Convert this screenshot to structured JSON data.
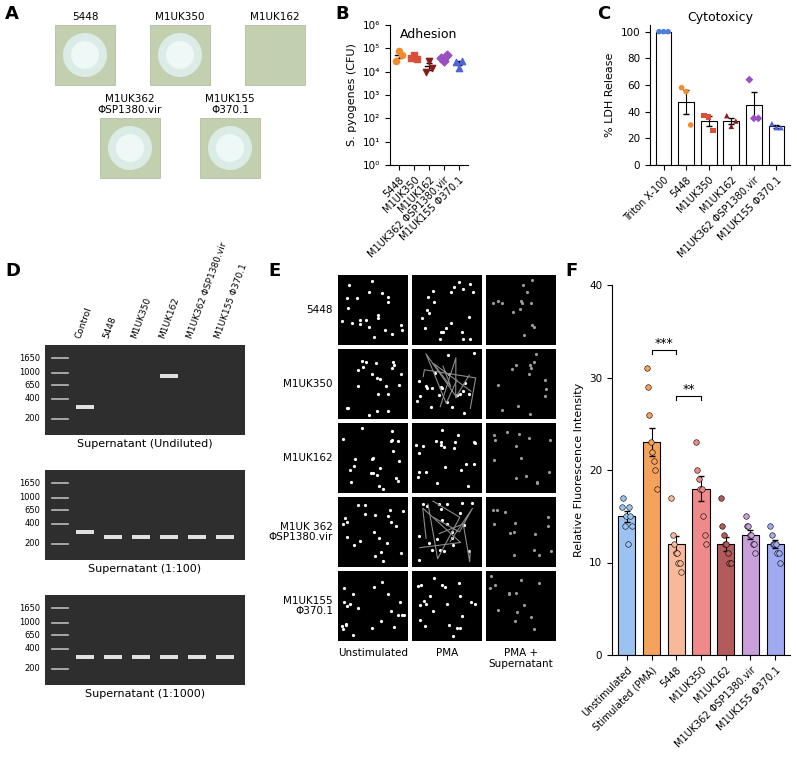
{
  "panel_A": {
    "panel_label": "A",
    "colonies": [
      {
        "name": "5448",
        "halo": true
      },
      {
        "name": "M1UK350",
        "halo": true
      },
      {
        "name": "M1UK162",
        "halo": false
      },
      {
        "name": "M1UK362\nΦSP1380.vir",
        "halo": true
      },
      {
        "name": "M1UK155\nΦ370.1",
        "halo": true
      }
    ]
  },
  "panel_D": {
    "panel_label": "D",
    "lanes": [
      "Control",
      "5448",
      "M1UK350",
      "M1UK162",
      "M1UK362 ΦSP1380.vir",
      "M1UK155 Φ370.1"
    ],
    "ladder": [
      1650,
      1000,
      650,
      400,
      200
    ],
    "gels": [
      {
        "caption": "Supernatant (Undiluted)",
        "bands": [
          300,
          null,
          null,
          900,
          null,
          null
        ]
      },
      {
        "caption": "Supernatant (1:100)",
        "bands": [
          300,
          250,
          250,
          250,
          250,
          250
        ]
      },
      {
        "caption": "Supernatant (1:1000)",
        "bands": [
          300,
          300,
          300,
          300,
          300,
          300
        ]
      }
    ]
  },
  "panel_E": {
    "panel_label": "E",
    "rows": [
      "5448",
      "M1UK350",
      "M1UK162",
      "M1UK 362\nΦSP1380.vir",
      "M1UK155\nΦ370.1"
    ],
    "columns": [
      "Unstimulated",
      "PMA",
      "PMA +\nSupernatant"
    ]
  },
  "chart_data": [
    {
      "panel_label": "B",
      "type": "scatter",
      "title": "Adhesion",
      "y_label": "S. pyogenes (CFU)",
      "log": "y",
      "ylim": [
        1,
        1000000
      ],
      "yticks": [
        {
          "value": 1,
          "label": "10⁰"
        },
        {
          "value": 10,
          "label": "10¹"
        },
        {
          "value": 100,
          "label": "10²"
        },
        {
          "value": 1000,
          "label": "10³"
        },
        {
          "value": 10000,
          "label": "10⁴"
        },
        {
          "value": 100000,
          "label": "10⁵"
        },
        {
          "value": 1000000,
          "label": "10⁶"
        }
      ],
      "series": [
        {
          "name": "5448",
          "color": "#f08c2e",
          "marker": "circle",
          "values": [
            30000,
            80000,
            50000
          ],
          "mean": 53000,
          "error": 15000
        },
        {
          "name": "M1UK350",
          "color": "#d9503a",
          "marker": "square",
          "values": [
            40000,
            50000,
            35000
          ],
          "mean": 42000,
          "error": 4500
        },
        {
          "name": "M1UK162",
          "color": "#8b1a1a",
          "marker": "triangle_down",
          "values": [
            10000,
            30000,
            15000
          ],
          "mean": 18000,
          "error": 6000
        },
        {
          "name": "M1UK362 ΦSP1380.vir",
          "color": "#9b4fc0",
          "marker": "diamond",
          "values": [
            40000,
            30000,
            50000
          ],
          "mean": 40000,
          "error": 5800
        },
        {
          "name": "M1UK155 Φ370.1",
          "color": "#4f63d9",
          "marker": "triangle_up",
          "values": [
            25000,
            15000,
            30000
          ],
          "mean": 23000,
          "error": 4400
        }
      ]
    },
    {
      "panel_label": "C",
      "type": "bar",
      "title": "Cytotoxicy",
      "y_label": "% LDH Release",
      "ylim": [
        0,
        105
      ],
      "yticks": [
        0,
        20,
        40,
        60,
        80,
        100
      ],
      "series": [
        {
          "name": "Triton X-100",
          "color": "#4f7fd9",
          "marker": "circle",
          "values": [
            100,
            100,
            100
          ],
          "mean": 100,
          "error": 0
        },
        {
          "name": "5448",
          "color": "#f08c2e",
          "marker": "circle",
          "values": [
            58,
            55,
            30
          ],
          "mean": 47,
          "error": 9
        },
        {
          "name": "M1UK350",
          "color": "#d9503a",
          "marker": "square",
          "values": [
            37,
            36,
            26
          ],
          "mean": 33,
          "error": 3.5
        },
        {
          "name": "M1UK162",
          "color": "#8b1a1a",
          "marker": "triangle_up",
          "values": [
            37,
            29,
            33
          ],
          "mean": 33,
          "error": 2.3
        },
        {
          "name": "M1UK362 ΦSP1380.vir",
          "color": "#9b4fc0",
          "marker": "diamond",
          "values": [
            64,
            35,
            35
          ],
          "mean": 45,
          "error": 9.7
        },
        {
          "name": "M1UK155 Φ370.1",
          "color": "#4f63d9",
          "marker": "triangle_up",
          "values": [
            31,
            28,
            28
          ],
          "mean": 29,
          "error": 1
        }
      ]
    },
    {
      "panel_label": "F",
      "type": "bar",
      "y_label": "Relative Fluorescence Intensity",
      "ylim": [
        0,
        40
      ],
      "yticks": [
        0,
        10,
        20,
        30,
        40
      ],
      "series": [
        {
          "name": "Unstimulated",
          "color": "#9cc3f0",
          "marker": "circle",
          "values": [
            16,
            17,
            14,
            15,
            12,
            16,
            15,
            14
          ],
          "mean": 15,
          "error": 0.6
        },
        {
          "name": "Stimulated (PMA)",
          "color": "#f5a35c",
          "marker": "circle",
          "values": [
            31,
            29,
            26,
            23,
            22,
            21,
            20,
            18
          ],
          "mean": 23,
          "error": 1.5
        },
        {
          "name": "5448",
          "color": "#f8b89a",
          "marker": "circle",
          "values": [
            17,
            13,
            12,
            11,
            11,
            10,
            10,
            9
          ],
          "mean": 12,
          "error": 0.9
        },
        {
          "name": "M1UK350",
          "color": "#f08a8a",
          "marker": "circle",
          "values": [
            23,
            20,
            19,
            18,
            18,
            15,
            13,
            12
          ],
          "mean": 18,
          "error": 1.3
        },
        {
          "name": "M1UK162",
          "color": "#b35a5a",
          "marker": "circle",
          "values": [
            17,
            14,
            13,
            12,
            12,
            11,
            10,
            10
          ],
          "mean": 12,
          "error": 0.8
        },
        {
          "name": "M1UK362 ΦSP1380.vir",
          "color": "#c9a0dc",
          "marker": "circle",
          "values": [
            15,
            14,
            14,
            13,
            13,
            12,
            12,
            11
          ],
          "mean": 13,
          "error": 0.5
        },
        {
          "name": "M1UK155 Φ370.1",
          "color": "#a0aaf0",
          "marker": "circle",
          "values": [
            14,
            13,
            12,
            12,
            12,
            11,
            11,
            10
          ],
          "mean": 12,
          "error": 0.4
        }
      ],
      "annotations": [
        {
          "text": "***",
          "between": [
            "Stimulated (PMA)",
            "5448"
          ],
          "y": 33
        },
        {
          "text": "**",
          "between": [
            "5448",
            "M1UK350"
          ],
          "y": 28
        }
      ]
    }
  ]
}
